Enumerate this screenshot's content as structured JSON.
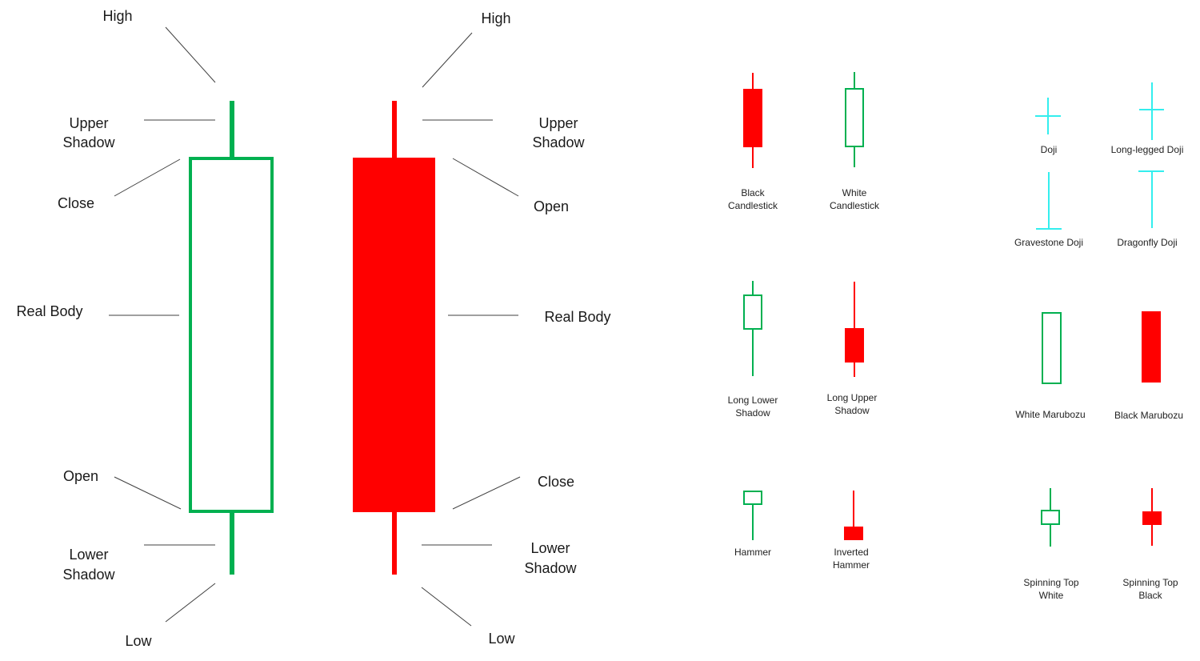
{
  "colors": {
    "bullish": "#00b050",
    "bearish": "#ff0000",
    "doji": "#33eeee",
    "leader": "#404040"
  },
  "white_anatomy": {
    "high": "High",
    "upper_shadow": [
      "Upper",
      "Shadow"
    ],
    "close": "Close",
    "real_body": "Real Body",
    "open": "Open",
    "lower_shadow": [
      "Lower",
      "Shadow"
    ],
    "low": "Low"
  },
  "black_anatomy": {
    "high": "High",
    "upper_shadow": [
      "Upper",
      "Shadow"
    ],
    "open": "Open",
    "real_body": "Real Body",
    "close": "Close",
    "lower_shadow": [
      "Lower",
      "Shadow"
    ],
    "low": "Low"
  },
  "patterns": {
    "black_candlestick": [
      "Black",
      "Candlestick"
    ],
    "white_candlestick": [
      "White",
      "Candlestick"
    ],
    "doji": "Doji",
    "long_legged_doji": "Long-legged Doji",
    "gravestone_doji": "Gravestone Doji",
    "dragonfly_doji": "Dragonfly Doji",
    "long_lower_shadow": [
      "Long Lower",
      "Shadow"
    ],
    "long_upper_shadow": [
      "Long Upper",
      "Shadow"
    ],
    "white_marubozu": "White Marubozu",
    "black_marubozu": "Black Marubozu",
    "hammer": "Hammer",
    "inverted_hammer": [
      "Inverted",
      "Hammer"
    ],
    "spinning_top_white": [
      "Spinning Top",
      "White"
    ],
    "spinning_top_black": [
      "Spinning Top",
      "Black"
    ]
  }
}
